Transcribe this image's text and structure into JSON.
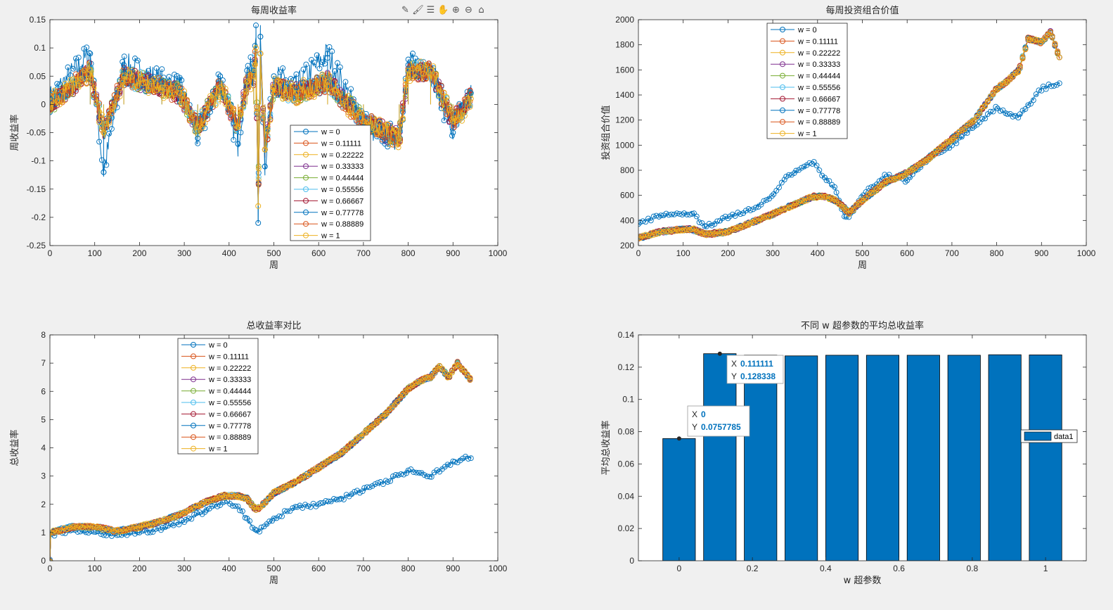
{
  "toolbar": {
    "icons": [
      "data-tip-icon",
      "brush-icon",
      "legend-toggle-icon",
      "pan-hand-icon",
      "zoom-in-icon",
      "zoom-out-icon",
      "home-icon"
    ]
  },
  "colors": {
    "background": "#f0f0f0",
    "axes": "#ffffff",
    "series": [
      "#0072bd",
      "#d95319",
      "#edb120",
      "#7e2f8e",
      "#77ac30",
      "#4dbeee",
      "#a2142f",
      "#0072bd",
      "#d95319",
      "#edb120"
    ],
    "bar": "#0072bd"
  },
  "chart_data": [
    {
      "id": "weekly-return",
      "type": "line",
      "title": "每周收益率",
      "xlabel": "周",
      "ylabel": "周收益率",
      "xlim": [
        0,
        1000
      ],
      "ylim": [
        -0.25,
        0.15
      ],
      "xticks": [
        "0",
        "100",
        "200",
        "300",
        "400",
        "500",
        "600",
        "700",
        "800",
        "900",
        "1000"
      ],
      "yticks": [
        "-0.25",
        "-0.2",
        "-0.15",
        "-0.1",
        "-0.05",
        "0",
        "0.05",
        "0.1",
        "0.15"
      ],
      "grid": false,
      "legend_position": "lower-right",
      "legend": [
        "w = 0",
        "w = 0.11111",
        "w = 0.22222",
        "w = 0.33333",
        "w = 0.44444",
        "w = 0.55556",
        "w = 0.66667",
        "w = 0.77778",
        "w = 0.88889",
        "w = 1"
      ],
      "series": [
        {
          "name": "w = 0",
          "x": [
            0,
            90,
            120,
            165,
            250,
            290,
            330,
            380,
            420,
            440,
            455,
            460,
            465,
            470,
            480,
            500,
            550,
            620,
            700,
            780,
            800,
            850,
            900,
            940
          ],
          "y": [
            0.01,
            0.09,
            -0.12,
            0.07,
            0.04,
            0.03,
            -0.06,
            0.05,
            -0.07,
            0.06,
            0.06,
            0.14,
            -0.21,
            0.12,
            -0.11,
            0.05,
            0.03,
            0.09,
            -0.04,
            -0.06,
            0.07,
            0.06,
            -0.05,
            0.02
          ]
        },
        {
          "name": "w = 1",
          "x": [
            0,
            90,
            120,
            165,
            250,
            290,
            330,
            380,
            420,
            440,
            455,
            460,
            465,
            470,
            480,
            500,
            550,
            620,
            700,
            780,
            800,
            850,
            900,
            940
          ],
          "y": [
            0.0,
            0.06,
            -0.05,
            0.05,
            0.03,
            0.02,
            -0.04,
            0.03,
            -0.04,
            0.04,
            0.05,
            0.1,
            -0.18,
            0.09,
            -0.08,
            0.03,
            0.02,
            0.04,
            -0.03,
            -0.06,
            0.06,
            0.06,
            -0.03,
            0.01
          ]
        }
      ]
    },
    {
      "id": "weekly-portfolio-value",
      "type": "line",
      "title": "每周投资组合价值",
      "xlabel": "周",
      "ylabel": "投资组合价值",
      "xlim": [
        0,
        1000
      ],
      "ylim": [
        200,
        2000
      ],
      "xticks": [
        "0",
        "100",
        "200",
        "300",
        "400",
        "500",
        "600",
        "700",
        "800",
        "900",
        "1000"
      ],
      "yticks": [
        "200",
        "400",
        "600",
        "800",
        "1000",
        "1200",
        "1400",
        "1600",
        "1800",
        "2000"
      ],
      "grid": false,
      "legend_position": "top-left",
      "legend": [
        "w = 0",
        "w = 0.11111",
        "w = 0.22222",
        "w = 0.33333",
        "w = 0.44444",
        "w = 0.55556",
        "w = 0.66667",
        "w = 0.77778",
        "w = 0.88889",
        "w = 1"
      ],
      "series": [
        {
          "name": "w = 0",
          "x": [
            0,
            50,
            100,
            120,
            150,
            200,
            250,
            300,
            330,
            350,
            390,
            420,
            440,
            460,
            470,
            500,
            550,
            600,
            650,
            700,
            750,
            800,
            820,
            850,
            900,
            940
          ],
          "y": [
            380,
            440,
            450,
            460,
            350,
            430,
            480,
            600,
            750,
            780,
            870,
            720,
            650,
            420,
            430,
            600,
            760,
            720,
            900,
            1000,
            1150,
            1300,
            1250,
            1230,
            1450,
            1500
          ]
        },
        {
          "name": "w = 1",
          "x": [
            0,
            50,
            100,
            120,
            150,
            200,
            250,
            300,
            330,
            350,
            390,
            420,
            440,
            460,
            470,
            500,
            550,
            600,
            650,
            700,
            750,
            800,
            820,
            850,
            870,
            900,
            920,
            940
          ],
          "y": [
            260,
            310,
            330,
            330,
            290,
            310,
            380,
            450,
            500,
            530,
            590,
            590,
            560,
            500,
            460,
            560,
            700,
            780,
            900,
            1050,
            1200,
            1450,
            1500,
            1600,
            1850,
            1820,
            1900,
            1700
          ]
        }
      ]
    },
    {
      "id": "total-return-comparison",
      "type": "line",
      "title": "总收益率对比",
      "xlabel": "周",
      "ylabel": "总收益率",
      "xlim": [
        0,
        1000
      ],
      "ylim": [
        0,
        8
      ],
      "xticks": [
        "0",
        "100",
        "200",
        "300",
        "400",
        "500",
        "600",
        "700",
        "800",
        "900",
        "1000"
      ],
      "yticks": [
        "0",
        "1",
        "2",
        "3",
        "4",
        "5",
        "6",
        "7",
        "8"
      ],
      "grid": false,
      "legend_position": "top-left",
      "legend": [
        "w = 0",
        "w = 0.11111",
        "w = 0.22222",
        "w = 0.33333",
        "w = 0.44444",
        "w = 0.55556",
        "w = 0.66667",
        "w = 0.77778",
        "w = 0.88889",
        "w = 1"
      ],
      "series": [
        {
          "name": "w = 0",
          "x": [
            0,
            50,
            100,
            150,
            200,
            250,
            300,
            350,
            390,
            420,
            440,
            460,
            470,
            500,
            550,
            600,
            650,
            700,
            750,
            800,
            850,
            900,
            940
          ],
          "y": [
            0.9,
            1.1,
            1.0,
            0.9,
            1.0,
            1.15,
            1.4,
            1.8,
            2.1,
            1.9,
            1.5,
            1.0,
            1.1,
            1.5,
            1.9,
            2.0,
            2.2,
            2.5,
            2.8,
            3.2,
            3.0,
            3.5,
            3.7
          ]
        },
        {
          "name": "w = 1",
          "x": [
            0,
            2,
            50,
            100,
            150,
            200,
            250,
            300,
            350,
            390,
            420,
            440,
            460,
            470,
            500,
            550,
            600,
            650,
            700,
            750,
            800,
            830,
            850,
            870,
            890,
            910,
            940
          ],
          "y": [
            0.0,
            1.0,
            1.2,
            1.2,
            1.05,
            1.2,
            1.4,
            1.7,
            2.1,
            2.3,
            2.3,
            2.2,
            1.8,
            1.9,
            2.4,
            2.8,
            3.3,
            3.8,
            4.5,
            5.2,
            6.1,
            6.4,
            6.5,
            6.9,
            6.5,
            7.0,
            6.4
          ]
        }
      ]
    },
    {
      "id": "average-total-return-by-w",
      "type": "bar",
      "title": "不同 w 超参数的平均总收益率",
      "xlabel": "w 超参数",
      "ylabel": "平均总收益率",
      "xlim": [
        -0.1111,
        1.1111
      ],
      "ylim": [
        0,
        0.14
      ],
      "xticks": [
        "0",
        "0.2",
        "0.4",
        "0.6",
        "0.8",
        "1"
      ],
      "yticks": [
        "0",
        "0.02",
        "0.04",
        "0.06",
        "0.08",
        "0.1",
        "0.12",
        "0.14"
      ],
      "grid": false,
      "legend_position": "right",
      "legend": [
        "data1"
      ],
      "x": [
        0,
        0.11111,
        0.22222,
        0.33333,
        0.44444,
        0.55556,
        0.66667,
        0.77778,
        0.88889,
        1
      ],
      "values": [
        0.0757785,
        0.128338,
        0.1275,
        0.127,
        0.1274,
        0.1274,
        0.1274,
        0.1274,
        0.1277,
        0.1276
      ],
      "datatips": [
        {
          "x_label": "X",
          "x_value": "0",
          "y_label": "Y",
          "y_value": "0.0757785",
          "bar_index": 0
        },
        {
          "x_label": "X",
          "x_value": "0.111111",
          "y_label": "Y",
          "y_value": "0.128338",
          "bar_index": 1
        }
      ]
    }
  ]
}
